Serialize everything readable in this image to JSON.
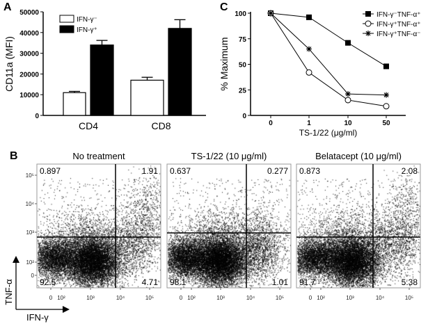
{
  "panels": {
    "a": "A",
    "b": "B",
    "c": "C"
  },
  "chart_data": [
    {
      "id": "A",
      "type": "bar",
      "ylabel": "CD11a (MFI)",
      "xlabel": "",
      "ylim": [
        0,
        50000
      ],
      "yticks": [
        "0",
        "10000",
        "20000",
        "30000",
        "40000",
        "50000"
      ],
      "categories": [
        "CD4",
        "CD8"
      ],
      "legend_position": "top-left",
      "series": [
        {
          "name": "IFN-γ⁻",
          "fill": "#ffffff",
          "values": [
            11000,
            17000
          ],
          "errors": [
            600,
            1400
          ]
        },
        {
          "name": "IFN-γ⁺",
          "fill": "#000000",
          "values": [
            34000,
            42000
          ],
          "errors": [
            2200,
            4200
          ]
        }
      ]
    },
    {
      "id": "C",
      "type": "line",
      "xlabel": "TS-1/22 (μg/ml)",
      "ylabel": "% Maximum",
      "ylim": [
        0,
        100
      ],
      "yticks": [
        "0",
        "25",
        "50",
        "75",
        "100"
      ],
      "x": [
        "0",
        "1",
        "10",
        "50"
      ],
      "legend_position": "top-right",
      "series": [
        {
          "name": "IFN-γ⁻TNF-α⁺",
          "marker": "filled-square",
          "values": [
            100,
            96,
            71,
            48
          ]
        },
        {
          "name": "IFN-γ⁺TNF-α⁺",
          "marker": "open-circle",
          "values": [
            100,
            42,
            15,
            9
          ]
        },
        {
          "name": "IFN-γ⁺TNF-α⁻",
          "marker": "asterisk",
          "values": [
            100,
            65,
            21,
            20
          ]
        }
      ]
    },
    {
      "id": "B",
      "type": "scatter",
      "xlabel": "IFN-γ",
      "ylabel": "TNF-α",
      "xticks": [
        "0",
        "10²",
        "10³",
        "10⁴",
        "10⁵"
      ],
      "yticks": [
        "10⁵",
        "10⁴",
        "10³",
        "10²",
        "0"
      ],
      "plots": [
        {
          "title": "No treatment",
          "quadrants": {
            "upper_left": "0.897",
            "upper_right": "1.91",
            "lower_left": "92.5",
            "lower_right": "4.71"
          }
        },
        {
          "title": "TS-1/22 (10 μg/ml)",
          "quadrants": {
            "upper_left": "0.637",
            "upper_right": "0.277",
            "lower_left": "98.1",
            "lower_right": "1.01"
          }
        },
        {
          "title": "Belatacept (10 μg/ml)",
          "quadrants": {
            "upper_left": "0.873",
            "upper_right": "2.08",
            "lower_left": "91.7",
            "lower_right": "5.38"
          }
        }
      ]
    }
  ]
}
